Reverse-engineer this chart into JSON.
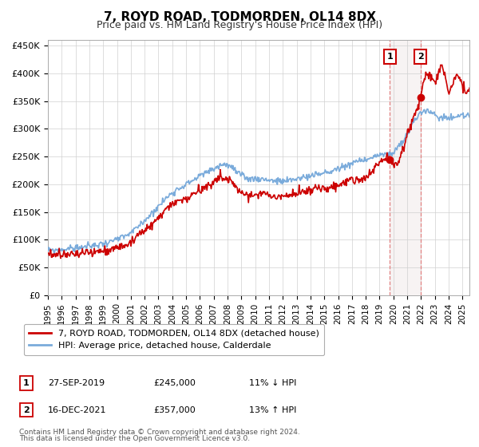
{
  "title": "7, ROYD ROAD, TODMORDEN, OL14 8DX",
  "subtitle": "Price paid vs. HM Land Registry's House Price Index (HPI)",
  "legend_line1": "7, ROYD ROAD, TODMORDEN, OL14 8DX (detached house)",
  "legend_line2": "HPI: Average price, detached house, Calderdale",
  "annotation1_label": "1",
  "annotation1_date": "27-SEP-2019",
  "annotation1_price": "£245,000",
  "annotation1_hpi": "11% ↓ HPI",
  "annotation1_value": 245000,
  "annotation1_year": 2019.75,
  "annotation2_label": "2",
  "annotation2_date": "16-DEC-2021",
  "annotation2_price": "£357,000",
  "annotation2_hpi": "13% ↑ HPI",
  "annotation2_value": 357000,
  "annotation2_year": 2021.96,
  "footer_line1": "Contains HM Land Registry data © Crown copyright and database right 2024.",
  "footer_line2": "This data is licensed under the Open Government Licence v3.0.",
  "red_color": "#cc0000",
  "blue_color": "#7aabdb",
  "dashed_color": "#e08080",
  "shade_color": "#f0e8e8",
  "ylim": [
    0,
    460000
  ],
  "yticks": [
    0,
    50000,
    100000,
    150000,
    200000,
    250000,
    300000,
    350000,
    400000,
    450000
  ],
  "ytick_labels": [
    "£0",
    "£50K",
    "£100K",
    "£150K",
    "£200K",
    "£250K",
    "£300K",
    "£350K",
    "£400K",
    "£450K"
  ],
  "xlim_start": 1995.0,
  "xlim_end": 2025.5
}
